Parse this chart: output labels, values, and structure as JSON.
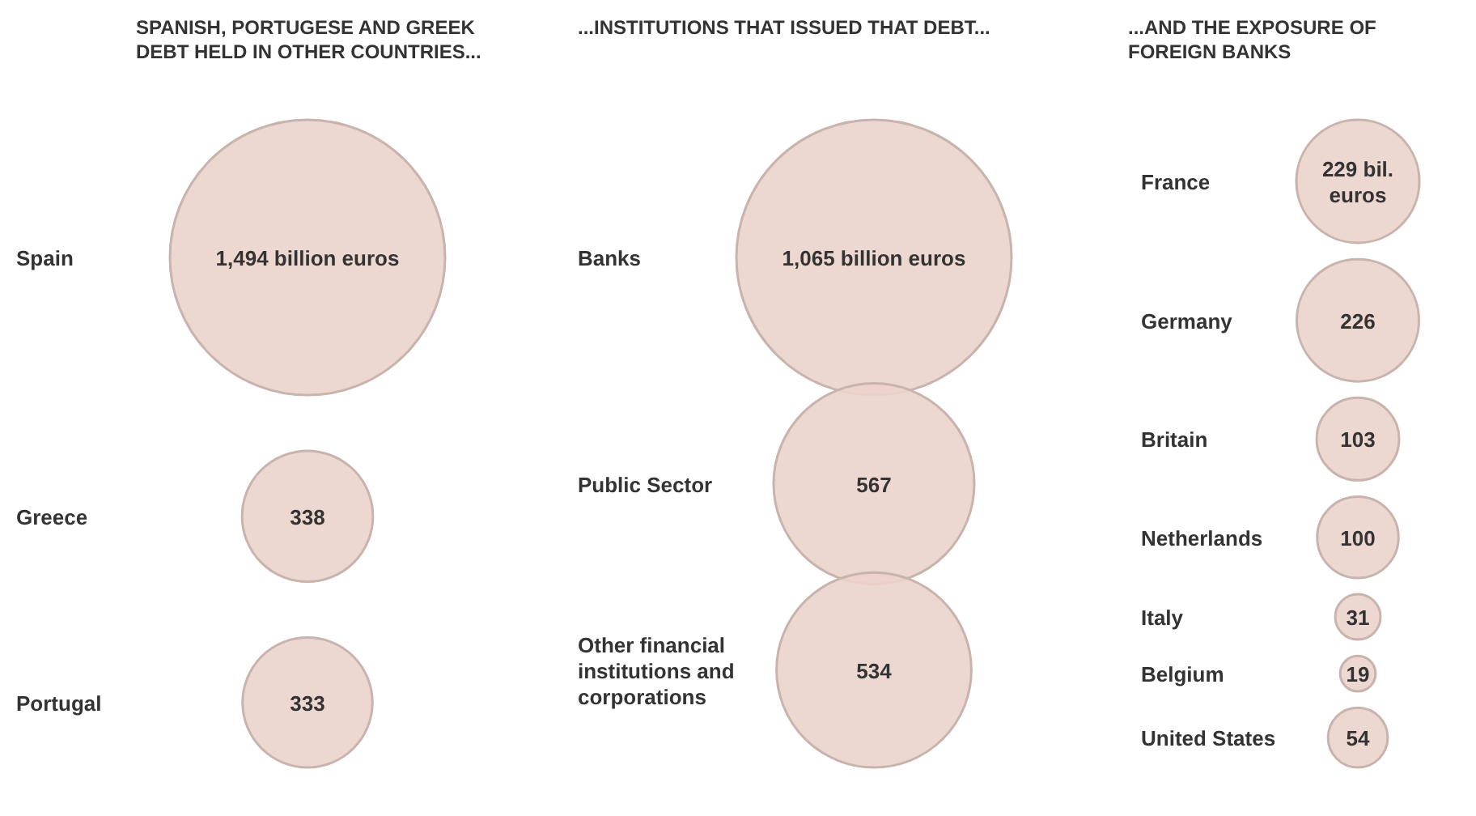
{
  "chart_data": [
    {
      "type": "other",
      "title": "SPANISH, PORTUGESE AND GREEK DEBT HELD IN OTHER COUNTRIES...",
      "categories": [
        "Spain",
        "Greece",
        "Portugal"
      ],
      "values": [
        1494,
        338,
        333
      ],
      "value_labels": [
        "1,494 billion euros",
        "338",
        "333"
      ],
      "color": "#ebd3cc"
    },
    {
      "type": "other",
      "title": "...INSTITUTIONS THAT ISSUED THAT DEBT...",
      "categories": [
        "Banks",
        "Public Sector",
        "Other financial institutions and corporations"
      ],
      "values": [
        1065,
        567,
        534
      ],
      "value_labels": [
        "1,065 billion euros",
        "567",
        "534"
      ],
      "color": "#ebd3cc"
    },
    {
      "type": "other",
      "title": "...AND THE EXPOSURE OF FOREIGN BANKS",
      "categories": [
        "France",
        "Germany",
        "Britain",
        "Netherlands",
        "Italy",
        "Belgium",
        "United States"
      ],
      "values": [
        229,
        226,
        103,
        100,
        31,
        19,
        54
      ],
      "value_labels": [
        "229 bil. euros",
        "226",
        "103",
        "100",
        "31",
        "19",
        "54"
      ],
      "color": "#ebd3cc"
    }
  ]
}
